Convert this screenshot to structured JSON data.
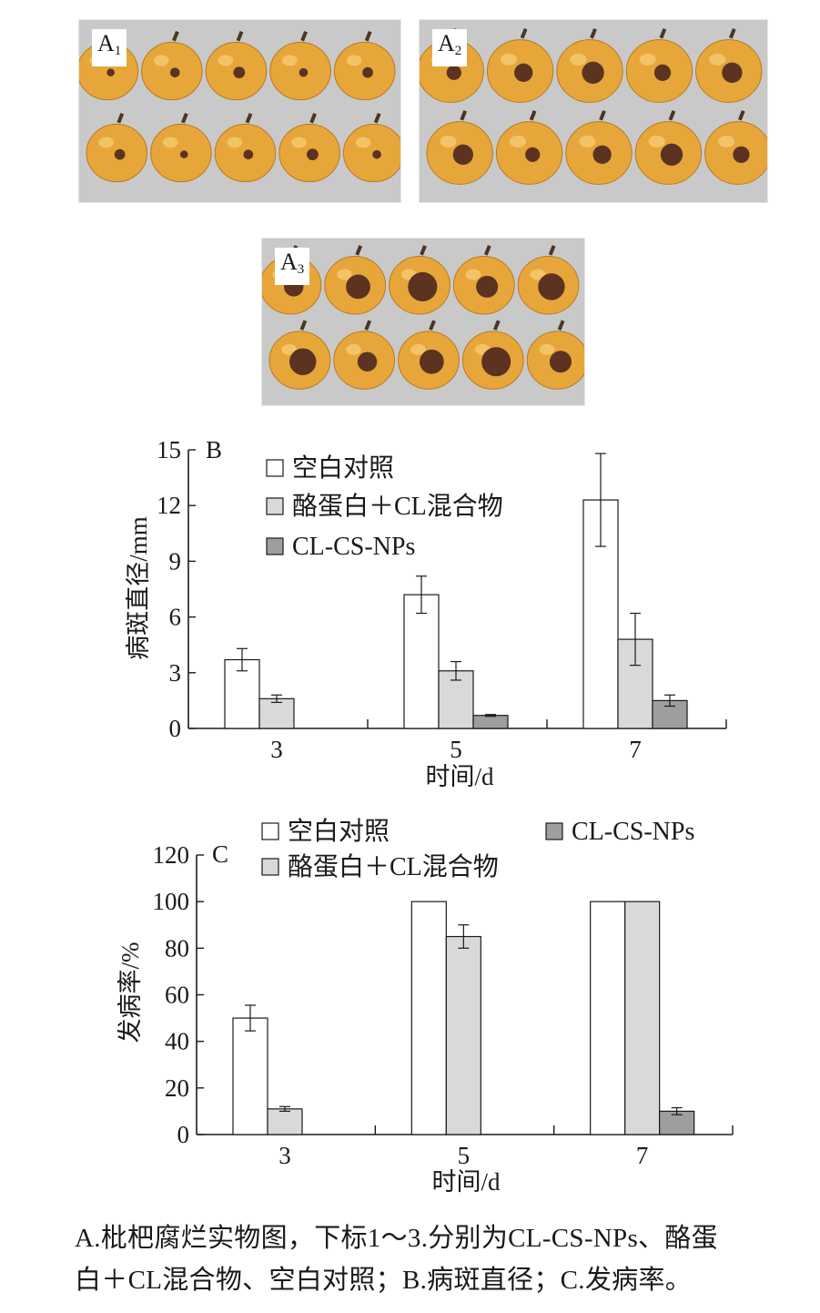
{
  "colors": {
    "control": "#ffffff",
    "casein_cl": "#d9d9d9",
    "cl_cs_nps": "#9e9e9e",
    "axis": "#1a1a1a",
    "fruit": "#e7a63a",
    "lesion": "#5b3320",
    "photo_bg": "#c9c9c9"
  },
  "photos": [
    {
      "label": "A",
      "subscript": "1"
    },
    {
      "label": "A",
      "subscript": "2"
    },
    {
      "label": "A",
      "subscript": "3"
    }
  ],
  "chart_data": [
    {
      "type": "bar",
      "panel_letter": "B",
      "categories": [
        "3",
        "5",
        "7"
      ],
      "series": [
        {
          "name": "空白对照",
          "values": [
            3.7,
            7.2,
            12.3
          ],
          "errors": [
            0.6,
            1.0,
            2.5
          ]
        },
        {
          "name": "酪蛋白＋CL混合物",
          "values": [
            1.6,
            3.1,
            4.8
          ],
          "errors": [
            0.2,
            0.5,
            1.4
          ]
        },
        {
          "name": "CL-CS-NPs",
          "values": [
            0,
            0.7,
            1.5
          ],
          "errors": [
            0,
            0.05,
            0.3
          ]
        }
      ],
      "xlabel": "时间/d",
      "ylabel": "病斑直径/mm",
      "ylim": [
        0,
        15
      ],
      "yticks": [
        "0",
        "3",
        "6",
        "9",
        "12",
        "15"
      ],
      "grid": false,
      "legend": "top-left, single column"
    },
    {
      "type": "bar",
      "panel_letter": "C",
      "categories": [
        "3",
        "5",
        "7"
      ],
      "series": [
        {
          "name": "空白对照",
          "values": [
            50,
            100,
            100
          ],
          "errors": [
            5.5,
            0,
            0
          ]
        },
        {
          "name": "酪蛋白＋CL混合物",
          "values": [
            11,
            85,
            100
          ],
          "errors": [
            1,
            5,
            0
          ]
        },
        {
          "name": "CL-CS-NPs",
          "values": [
            0,
            0,
            10
          ],
          "errors": [
            0,
            0,
            1.5
          ]
        }
      ],
      "xlabel": "时间/d",
      "ylabel": "发病率/%",
      "ylim": [
        0,
        120
      ],
      "yticks": [
        "0",
        "20",
        "40",
        "60",
        "80",
        "100",
        "120"
      ],
      "grid": false,
      "legend": "top, two columns"
    }
  ],
  "caption": {
    "line1": "A.枇杷腐烂实物图，下标1～3.分别为CL-CS-NPs、酪蛋",
    "line2": "白＋CL混合物、空白对照；B.病斑直径；C.发病率。"
  }
}
